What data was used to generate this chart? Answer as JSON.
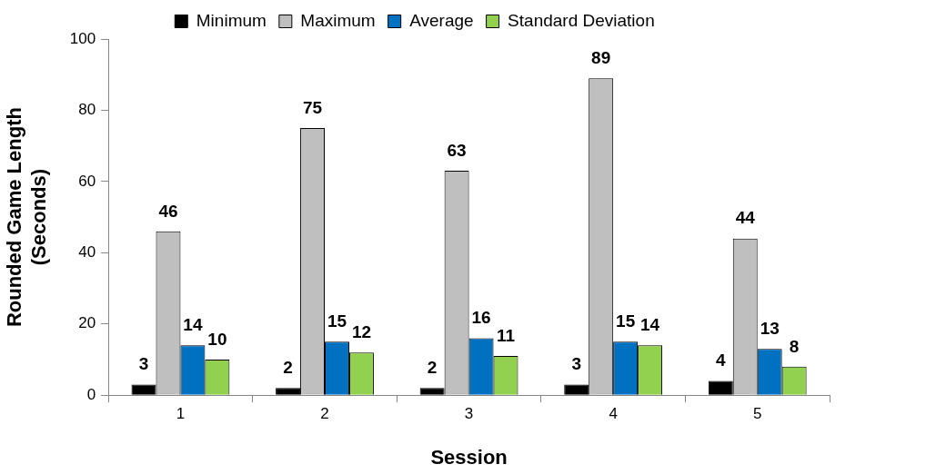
{
  "chart_data": {
    "type": "bar",
    "xlabel": "Session",
    "ylabel": "Rounded Game Length\n(Seconds)",
    "categories": [
      "1",
      "2",
      "3",
      "4",
      "5"
    ],
    "series": [
      {
        "name": "Minimum",
        "color": "#000000",
        "values": [
          3,
          2,
          2,
          3,
          4
        ]
      },
      {
        "name": "Maximum",
        "color": "#bfbfbf",
        "values": [
          46,
          75,
          63,
          89,
          44
        ]
      },
      {
        "name": "Average",
        "color": "#0070c0",
        "values": [
          14,
          15,
          16,
          15,
          13
        ]
      },
      {
        "name": "Standard Deviation",
        "color": "#92d050",
        "values": [
          10,
          12,
          11,
          14,
          8
        ]
      }
    ],
    "ylim": [
      0,
      100
    ],
    "yticks": [
      0,
      20,
      40,
      60,
      80,
      100
    ],
    "grid": false,
    "legend": "top",
    "data_labels": true
  }
}
